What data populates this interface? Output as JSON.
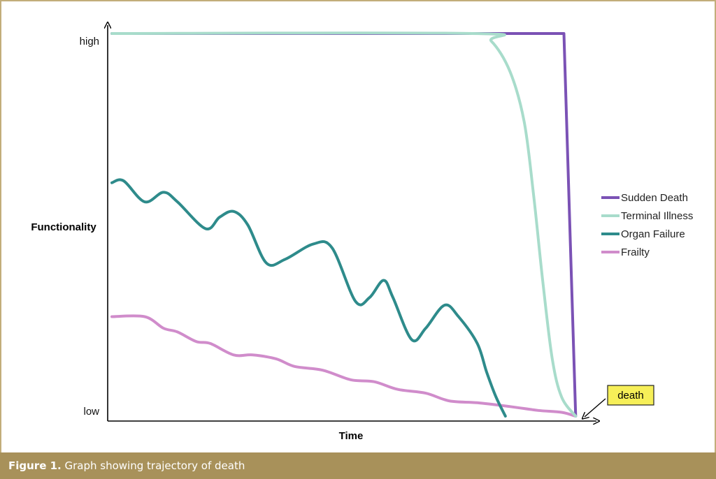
{
  "chart_data": {
    "type": "line",
    "xlabel": "Time",
    "ylabel": "Functionality",
    "y_tick_labels": {
      "high": "high",
      "low": "low"
    },
    "ylim": [
      0,
      100
    ],
    "xlim": [
      0,
      100
    ],
    "legend_position": "right",
    "grid": false,
    "annotation": "death",
    "series": [
      {
        "name": "Sudden Death",
        "color": "#7b52b5",
        "points": [
          [
            0,
            100
          ],
          [
            77,
            100
          ],
          [
            96.5,
            100
          ],
          [
            99,
            0
          ]
        ]
      },
      {
        "name": "Terminal Illness",
        "color": "#a8dccb",
        "points": [
          [
            0,
            100
          ],
          [
            77,
            100
          ],
          [
            81,
            98
          ],
          [
            85,
            90
          ],
          [
            88,
            77
          ],
          [
            90,
            58
          ],
          [
            92,
            35
          ],
          [
            94,
            15
          ],
          [
            96,
            5
          ],
          [
            99,
            0
          ]
        ]
      },
      {
        "name": "Organ Failure",
        "color": "#2e8b8b",
        "points": [
          [
            0,
            61
          ],
          [
            2.5,
            61.5
          ],
          [
            7,
            56
          ],
          [
            11,
            58.5
          ],
          [
            14,
            56
          ],
          [
            20,
            49
          ],
          [
            23,
            52
          ],
          [
            26,
            53.5
          ],
          [
            29,
            50
          ],
          [
            33,
            40
          ],
          [
            37,
            41
          ],
          [
            43,
            45
          ],
          [
            47,
            44
          ],
          [
            52,
            30
          ],
          [
            55,
            31
          ],
          [
            58,
            35.5
          ],
          [
            60,
            31
          ],
          [
            64,
            20
          ],
          [
            67,
            23
          ],
          [
            71,
            29
          ],
          [
            74,
            26
          ],
          [
            78,
            19
          ],
          [
            80,
            11.5
          ],
          [
            82,
            5
          ],
          [
            84,
            0
          ]
        ]
      },
      {
        "name": "Frailty",
        "color": "#d08ccb",
        "points": [
          [
            0,
            26
          ],
          [
            7,
            26
          ],
          [
            11,
            23
          ],
          [
            14,
            22
          ],
          [
            18,
            19.5
          ],
          [
            21,
            19
          ],
          [
            26,
            16
          ],
          [
            30,
            16
          ],
          [
            35,
            15
          ],
          [
            39,
            13
          ],
          [
            45,
            12
          ],
          [
            51,
            9.5
          ],
          [
            56,
            9
          ],
          [
            61,
            7
          ],
          [
            67,
            6
          ],
          [
            72,
            4
          ],
          [
            78,
            3.5
          ],
          [
            85,
            2.5
          ],
          [
            91,
            1.5
          ],
          [
            96,
            1
          ],
          [
            99,
            0
          ]
        ]
      }
    ]
  },
  "caption": {
    "label": "Figure 1.",
    "text": "Graph showing trajectory of death"
  }
}
